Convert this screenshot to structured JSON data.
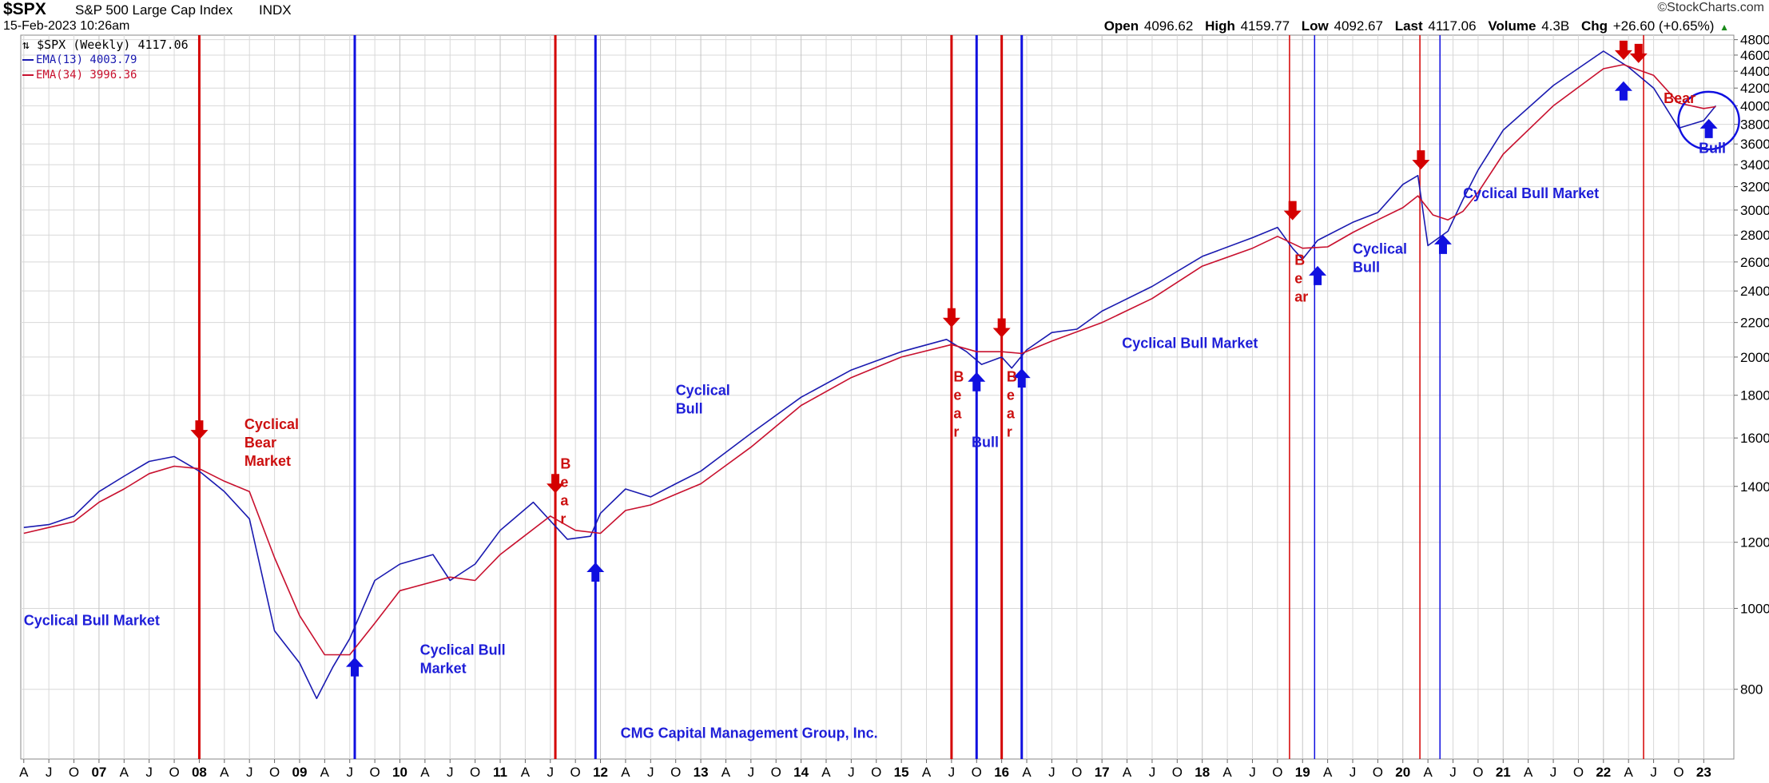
{
  "header": {
    "symbol": "$SPX",
    "description": "S&P 500 Large Cap Index",
    "exchange": "INDX",
    "datetime": "15-Feb-2023 10:26am",
    "brand": "©StockCharts.com",
    "open_label": "Open",
    "open": "4096.62",
    "high_label": "High",
    "high": "4159.77",
    "low_label": "Low",
    "low": "4092.67",
    "last_label": "Last",
    "last": "4117.06",
    "volume_label": "Volume",
    "volume": "4.3B",
    "chg_label": "Chg",
    "chg": "+26.60 (+0.65%)",
    "chg_arrow": "▲"
  },
  "legend": {
    "price": "$SPX (Weekly) 4117.06",
    "ema13": "EMA(13) 4003.79",
    "ema34": "EMA(34) 3996.36"
  },
  "colors": {
    "blue": "#1a1ab0",
    "red": "#c8102e",
    "label_blue": "#1e1ed8",
    "label_red": "#cc1010",
    "grid": "#d8d8d8"
  },
  "chart_data": {
    "type": "line",
    "ylim": [
      660,
      4860
    ],
    "xlim": [
      2006.22,
      2023.3
    ],
    "y_ticks": [
      800,
      1000,
      1200,
      1400,
      1600,
      1800,
      2000,
      2200,
      2400,
      2600,
      2800,
      3000,
      3200,
      3400,
      3600,
      3800,
      4000,
      4200,
      4400,
      4600,
      4800
    ],
    "y_scale": "log",
    "grid": true,
    "x_tick_labels": [
      "A",
      "J",
      "O",
      "07",
      "A",
      "J",
      "O",
      "08",
      "A",
      "J",
      "O",
      "09",
      "A",
      "J",
      "O",
      "10",
      "A",
      "J",
      "O",
      "11",
      "A",
      "J",
      "O",
      "12",
      "A",
      "J",
      "O",
      "13",
      "A",
      "J",
      "O",
      "14",
      "A",
      "J",
      "O",
      "15",
      "A",
      "J",
      "O",
      "16",
      "A",
      "J",
      "O",
      "17",
      "A",
      "J",
      "O",
      "18",
      "A",
      "J",
      "O",
      "19",
      "A",
      "J",
      "O",
      "20",
      "A",
      "J",
      "O",
      "21",
      "A",
      "J",
      "O",
      "22",
      "A",
      "J",
      "O",
      "23"
    ],
    "series": [
      {
        "name": "EMA(13)",
        "color": "#1a1ab0",
        "x": [
          2006.25,
          2006.5,
          2006.75,
          2007.0,
          2007.25,
          2007.5,
          2007.75,
          2008.0,
          2008.25,
          2008.5,
          2008.75,
          2009.0,
          2009.17,
          2009.33,
          2009.5,
          2009.75,
          2010.0,
          2010.33,
          2010.5,
          2010.75,
          2011.0,
          2011.33,
          2011.67,
          2011.9,
          2012.0,
          2012.25,
          2012.5,
          2012.75,
          2013.0,
          2013.5,
          2014.0,
          2014.5,
          2015.0,
          2015.45,
          2015.65,
          2015.8,
          2016.0,
          2016.1,
          2016.25,
          2016.5,
          2016.75,
          2017.0,
          2017.5,
          2018.0,
          2018.5,
          2018.75,
          2018.9,
          2019.0,
          2019.15,
          2019.5,
          2019.75,
          2020.0,
          2020.15,
          2020.25,
          2020.45,
          2020.6,
          2020.75,
          2021.0,
          2021.5,
          2022.0,
          2022.25,
          2022.5,
          2022.75,
          2023.0,
          2023.12
        ],
        "values": [
          1250,
          1260,
          1290,
          1380,
          1440,
          1500,
          1520,
          1460,
          1380,
          1280,
          940,
          860,
          780,
          850,
          920,
          1080,
          1130,
          1160,
          1080,
          1130,
          1240,
          1340,
          1210,
          1220,
          1300,
          1390,
          1360,
          1410,
          1460,
          1620,
          1790,
          1930,
          2030,
          2100,
          2030,
          1960,
          2000,
          1940,
          2040,
          2140,
          2160,
          2270,
          2430,
          2640,
          2780,
          2860,
          2700,
          2620,
          2760,
          2900,
          2980,
          3220,
          3300,
          2720,
          2830,
          3090,
          3350,
          3740,
          4230,
          4650,
          4450,
          4200,
          3760,
          3840,
          4000
        ]
      },
      {
        "name": "EMA(34)",
        "color": "#c8102e",
        "x": [
          2006.25,
          2006.5,
          2006.75,
          2007.0,
          2007.25,
          2007.5,
          2007.75,
          2008.0,
          2008.25,
          2008.5,
          2008.75,
          2009.0,
          2009.25,
          2009.5,
          2009.75,
          2010.0,
          2010.5,
          2010.75,
          2011.0,
          2011.5,
          2011.75,
          2012.0,
          2012.25,
          2012.5,
          2012.75,
          2013.0,
          2013.5,
          2014.0,
          2014.5,
          2015.0,
          2015.5,
          2015.75,
          2016.0,
          2016.2,
          2016.5,
          2017.0,
          2017.5,
          2018.0,
          2018.5,
          2018.75,
          2019.0,
          2019.25,
          2019.5,
          2019.75,
          2020.0,
          2020.15,
          2020.3,
          2020.45,
          2020.6,
          2020.75,
          2021.0,
          2021.5,
          2022.0,
          2022.2,
          2022.5,
          2022.75,
          2023.0,
          2023.12
        ],
        "values": [
          1230,
          1250,
          1270,
          1340,
          1390,
          1450,
          1480,
          1470,
          1420,
          1380,
          1150,
          980,
          880,
          880,
          960,
          1050,
          1090,
          1080,
          1160,
          1290,
          1240,
          1230,
          1310,
          1330,
          1370,
          1410,
          1560,
          1750,
          1890,
          2000,
          2070,
          2030,
          2030,
          2020,
          2090,
          2200,
          2350,
          2570,
          2700,
          2790,
          2700,
          2710,
          2820,
          2920,
          3020,
          3120,
          2960,
          2920,
          2990,
          3150,
          3500,
          4000,
          4430,
          4480,
          4350,
          4030,
          3970,
          3990
        ]
      }
    ],
    "markers": {
      "red_lines_thick": [
        2008.0,
        2011.55,
        2015.5,
        2016.0
      ],
      "red_lines_thin": [
        2018.87,
        2020.17,
        2022.4
      ],
      "blue_lines_thick": [
        2009.55,
        2011.95,
        2015.75,
        2016.2
      ],
      "blue_lines_thin": [
        2019.12,
        2020.37
      ],
      "red_down_arrows": [
        [
          2008.0,
          1600
        ],
        [
          2011.55,
          1380
        ],
        [
          2015.5,
          2180
        ],
        [
          2016.0,
          2120
        ],
        [
          2018.9,
          2930
        ],
        [
          2020.18,
          3370
        ],
        [
          2022.2,
          4560
        ],
        [
          2022.35,
          4520
        ]
      ],
      "blue_up_arrows": [
        [
          2009.55,
          870
        ],
        [
          2011.95,
          1130
        ],
        [
          2015.75,
          1910
        ],
        [
          2016.2,
          1930
        ],
        [
          2019.15,
          2560
        ],
        [
          2020.4,
          2790
        ],
        [
          2022.2,
          4260
        ],
        [
          2023.05,
          3840
        ]
      ]
    },
    "annotations": [
      {
        "lines": [
          "Cyclical Bull Market"
        ],
        "color": "blue",
        "x": 2006.25,
        "y": 955
      },
      {
        "lines": [
          "Cyclical",
          "Bear",
          "Market"
        ],
        "color": "red",
        "x": 2008.45,
        "y": 1640
      },
      {
        "lines": [
          "Cyclical Bull",
          "Market"
        ],
        "color": "blue",
        "x": 2010.2,
        "y": 880
      },
      {
        "lines": [
          "B",
          "e",
          "a",
          "r"
        ],
        "color": "red",
        "x": 2011.6,
        "y": 1470
      },
      {
        "lines": [
          "Cyclical",
          "Bull"
        ],
        "color": "blue",
        "x": 2012.75,
        "y": 1800
      },
      {
        "lines": [
          "B",
          "e",
          "a",
          "r"
        ],
        "color": "red",
        "x": 2015.52,
        "y": 1870
      },
      {
        "lines": [
          "Bull"
        ],
        "color": "blue",
        "x": 2015.7,
        "y": 1560
      },
      {
        "lines": [
          "B",
          "e",
          "a",
          "r"
        ],
        "color": "red",
        "x": 2016.05,
        "y": 1870
      },
      {
        "lines": [
          "Cyclical Bull Market"
        ],
        "color": "blue",
        "x": 2017.2,
        "y": 2050
      },
      {
        "lines": [
          "B",
          "e",
          "ar"
        ],
        "color": "red",
        "x": 2018.92,
        "y": 2580
      },
      {
        "lines": [
          "Cyclical",
          "Bull"
        ],
        "color": "blue",
        "x": 2019.5,
        "y": 2660
      },
      {
        "lines": [
          "Cyclical Bull Market"
        ],
        "color": "blue",
        "x": 2020.6,
        "y": 3100
      },
      {
        "lines": [
          "Bear"
        ],
        "color": "red",
        "x": 2022.6,
        "y": 4030
      },
      {
        "lines": [
          "Bull"
        ],
        "color": "blue",
        "x": 2022.95,
        "y": 3510
      },
      {
        "lines": [
          "CMG Capital Management Group, Inc."
        ],
        "color": "blue",
        "x": 2012.2,
        "y": 700
      }
    ]
  }
}
